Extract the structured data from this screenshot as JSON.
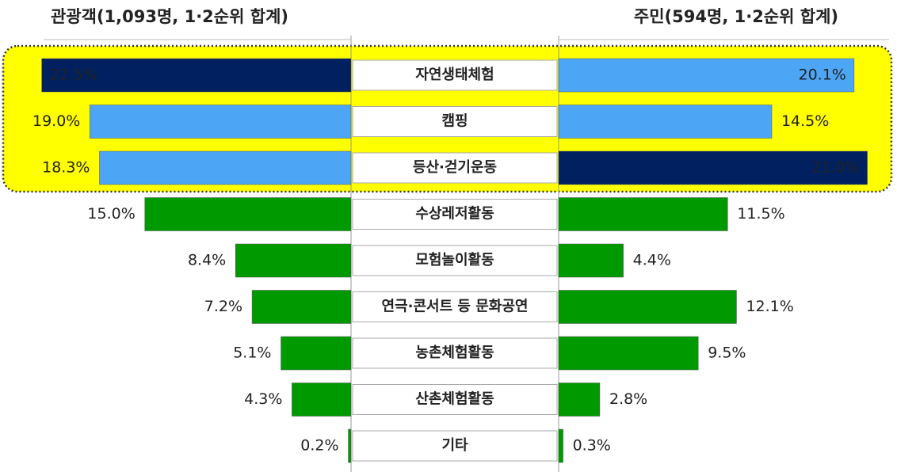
{
  "chart_data": {
    "type": "butterfly",
    "categories": [
      "자연생태체험",
      "캠핑",
      "등산·걷기운동",
      "수상레저활동",
      "모험놀이활동",
      "연극·콘서트 등 문화공연",
      "농촌체험활동",
      "산촌체험활동",
      "기타"
    ],
    "series": [
      {
        "name": "관광객(1,093명, 1·2순위 합계)",
        "side": "left",
        "values": [
          22.5,
          19.0,
          18.3,
          15.0,
          8.4,
          7.2,
          5.1,
          4.3,
          0.2
        ],
        "value_labels": [
          "22.5%",
          "19.0%",
          "18.3%",
          "15.0%",
          "8.4%",
          "7.2%",
          "5.1%",
          "4.3%",
          "0.2%"
        ],
        "colors": [
          "#002060",
          "#4da6f5",
          "#4da6f5",
          "#009a00",
          "#009a00",
          "#009a00",
          "#009a00",
          "#009a00",
          "#009a00"
        ]
      },
      {
        "name": "주민(594명, 1·2순위 합계)",
        "side": "right",
        "values": [
          20.1,
          14.5,
          21.0,
          11.5,
          4.4,
          12.1,
          9.5,
          2.8,
          0.3
        ],
        "value_labels": [
          "20.1%",
          "14.5%",
          "21.0%",
          "11.5%",
          "4.4%",
          "12.1%",
          "9.5%",
          "2.8%",
          "0.3%"
        ],
        "colors": [
          "#4da6f5",
          "#4da6f5",
          "#002060",
          "#009a00",
          "#009a00",
          "#009a00",
          "#009a00",
          "#009a00",
          "#009a00"
        ]
      }
    ]
  }
}
